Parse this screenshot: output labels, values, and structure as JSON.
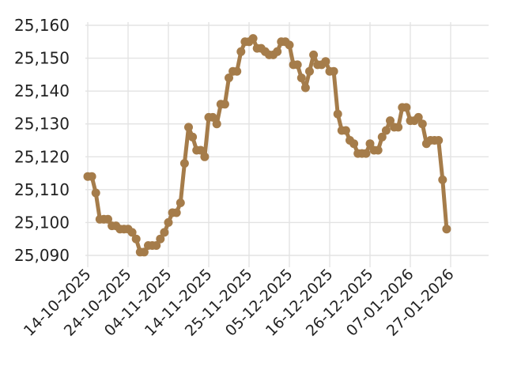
{
  "chart_data": {
    "type": "line",
    "title": "",
    "xlabel": "",
    "ylabel": "",
    "ylim": [
      25088,
      25161
    ],
    "yticks": [
      "25,090",
      "25,100",
      "25,110",
      "25,120",
      "25,130",
      "25,140",
      "25,150",
      "25,160"
    ],
    "ytick_values": [
      25090,
      25100,
      25110,
      25120,
      25130,
      25140,
      25150,
      25160
    ],
    "grid": true,
    "legend": "none",
    "line_color": "#a57c4a",
    "xtick_labels": [
      "14-10-2025",
      "24-10-2025",
      "04-11-2025",
      "14-11-2025",
      "25-11-2025",
      "05-12-2025",
      "16-12-2025",
      "26-12-2025",
      "07-01-2026",
      "27-01-2026"
    ],
    "xtick_index": [
      0,
      10,
      20,
      30,
      40,
      50,
      60,
      70,
      80,
      90
    ],
    "series": [
      {
        "values": [
          25114,
          25114,
          25109,
          25101,
          25101,
          25101,
          25099,
          25099,
          25098,
          25098,
          25098,
          25097,
          25095,
          25091,
          25091,
          25093,
          25093,
          25093,
          25095,
          25097,
          25100,
          25103,
          25103,
          25106,
          25118,
          25129,
          25126,
          25122,
          25122,
          25120,
          25132,
          25132,
          25130,
          25136,
          25136,
          25144,
          25146,
          25146,
          25152,
          25155,
          25155,
          25156,
          25153,
          25153,
          25152,
          25151,
          25151,
          25152,
          25155,
          25155,
          25154,
          25148,
          25148,
          25144,
          25141,
          25146,
          25151,
          25148,
          25148,
          25149,
          25146,
          25146,
          25133,
          25128,
          25128,
          25125,
          25124,
          25121,
          25121,
          25121,
          25124,
          25122,
          25122,
          25126,
          25128,
          25131,
          25129,
          25129,
          25135,
          25135,
          25131,
          25131,
          25132,
          25130,
          25124,
          25125,
          25125,
          25125,
          25113,
          25098
        ]
      }
    ]
  }
}
